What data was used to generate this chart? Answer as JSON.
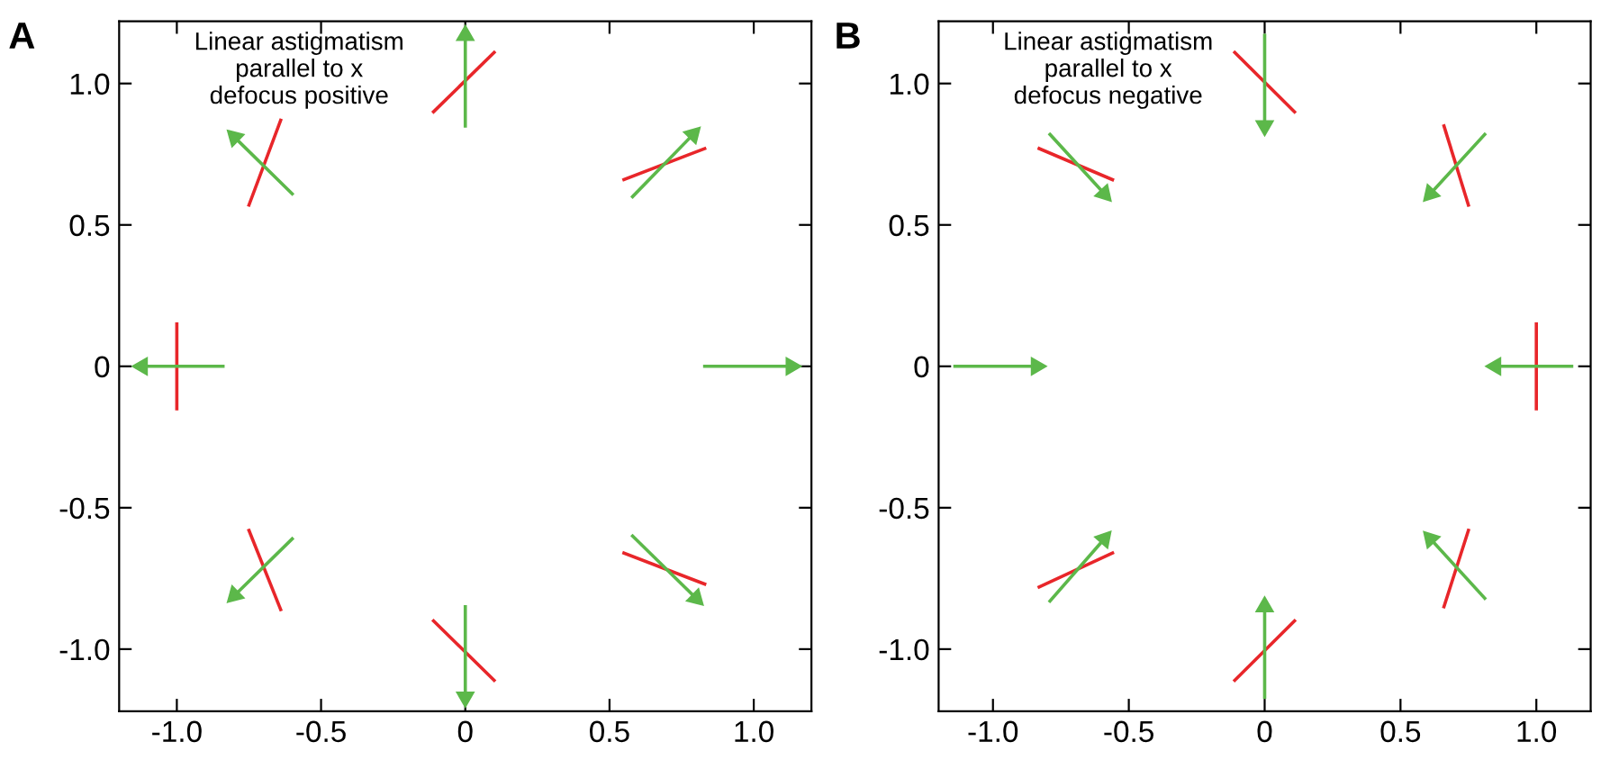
{
  "chart_data": [
    {
      "type": "line",
      "title": "A",
      "annotations": [
        "Linear astigmatism\nparallel to x\ndefocus positive"
      ],
      "xlim": [
        -1.2,
        1.2
      ],
      "ylim": [
        -1.22,
        1.22
      ],
      "xticks": [
        {
          "value": -1.0,
          "label": "-1.0"
        },
        {
          "value": -0.5,
          "label": "-0.5"
        },
        0,
        0.5,
        {
          "value": 1.0,
          "label": "1.0"
        }
      ],
      "yticks": [
        {
          "value": -1.0,
          "label": "-1.0"
        },
        {
          "value": -0.5,
          "label": "-0.5"
        },
        0,
        0.5,
        {
          "value": 1.0,
          "label": "1.0"
        }
      ],
      "grid": false,
      "series": [
        {
          "color": "#e8262a",
          "x": [
            -0.11,
            0.1
          ],
          "values": [
            0.9,
            1.11
          ]
        },
        {
          "color": "#e8262a",
          "x": [
            0.55,
            0.83
          ],
          "values": [
            0.66,
            0.77
          ]
        },
        {
          "color": "#e8262a",
          "x": [
            -0.75,
            -0.64
          ],
          "values": [
            0.57,
            0.87
          ]
        },
        {
          "color": "#e8262a",
          "x": [
            -1.0,
            -1.0
          ],
          "values": [
            0.15,
            -0.15
          ]
        },
        {
          "color": "#e8262a",
          "x": [
            -0.75,
            -0.64
          ],
          "values": [
            -0.58,
            -0.86
          ]
        },
        {
          "color": "#e8262a",
          "x": [
            -0.11,
            0.1
          ],
          "values": [
            -0.9,
            -1.11
          ]
        },
        {
          "color": "#e8262a",
          "x": [
            0.55,
            0.83
          ],
          "values": [
            -0.66,
            -0.77
          ]
        },
        {
          "color": "#5cb84a",
          "marker": "triangle",
          "x": [
            0,
            0
          ],
          "values": [
            0.85,
            1.17
          ]
        },
        {
          "color": "#5cb84a",
          "marker": "triangle",
          "x": [
            0.58,
            0.79
          ],
          "values": [
            0.6,
            0.82
          ]
        },
        {
          "color": "#5cb84a",
          "marker": "triangle",
          "x": [
            -0.6,
            -0.8
          ],
          "values": [
            0.61,
            0.81
          ]
        },
        {
          "color": "#5cb84a",
          "marker": "triangle",
          "x": [
            -0.84,
            -1.12
          ],
          "values": [
            0,
            0
          ]
        },
        {
          "color": "#5cb84a",
          "marker": "triangle",
          "x": [
            0.83,
            1.13
          ],
          "values": [
            0,
            0
          ]
        },
        {
          "color": "#5cb84a",
          "marker": "triangle",
          "x": [
            -0.6,
            -0.8
          ],
          "values": [
            -0.61,
            -0.81
          ]
        },
        {
          "color": "#5cb84a",
          "marker": "triangle",
          "x": [
            0,
            0
          ],
          "values": [
            -0.85,
            -1.17
          ]
        },
        {
          "color": "#5cb84a",
          "marker": "triangle",
          "x": [
            0.58,
            0.8
          ],
          "values": [
            -0.6,
            -0.82
          ]
        }
      ]
    },
    {
      "type": "line",
      "title": "B",
      "annotations": [
        "Linear astigmatism\nparallel to x\ndefocus negative"
      ],
      "xlim": [
        -1.2,
        1.2
      ],
      "ylim": [
        -1.22,
        1.22
      ],
      "xticks": [
        {
          "value": -1.0,
          "label": "-1.0"
        },
        {
          "value": -0.5,
          "label": "-0.5"
        },
        0,
        0.5,
        {
          "value": 1.0,
          "label": "1.0"
        }
      ],
      "yticks": [
        {
          "value": -1.0,
          "label": "-1.0"
        },
        {
          "value": -0.5,
          "label": "-0.5"
        },
        0,
        0.5,
        {
          "value": 1.0,
          "label": "1.0"
        }
      ],
      "grid": false,
      "series": [
        {
          "color": "#e8262a",
          "x": [
            -0.11,
            0.11
          ],
          "values": [
            1.11,
            0.9
          ]
        },
        {
          "color": "#e8262a",
          "x": [
            -0.83,
            -0.56
          ],
          "values": [
            0.77,
            0.66
          ]
        },
        {
          "color": "#e8262a",
          "x": [
            -0.83,
            -0.56
          ],
          "values": [
            -0.78,
            -0.66
          ]
        },
        {
          "color": "#e8262a",
          "x": [
            -0.11,
            0.11
          ],
          "values": [
            -1.11,
            -0.9
          ]
        },
        {
          "color": "#e8262a",
          "x": [
            0.66,
            0.75
          ],
          "values": [
            -0.85,
            -0.58
          ]
        },
        {
          "color": "#e8262a",
          "x": [
            1.0,
            1.0
          ],
          "values": [
            0.15,
            -0.15
          ]
        },
        {
          "color": "#e8262a",
          "x": [
            0.66,
            0.75
          ],
          "values": [
            0.85,
            0.57
          ]
        },
        {
          "color": "#5cb84a",
          "marker": "triangle",
          "x": [
            0,
            0
          ],
          "values": [
            1.17,
            0.85
          ]
        },
        {
          "color": "#5cb84a",
          "marker": "triangle",
          "x": [
            -0.79,
            -0.59
          ],
          "values": [
            0.82,
            0.61
          ]
        },
        {
          "color": "#5cb84a",
          "marker": "triangle",
          "x": [
            -1.14,
            -0.84
          ],
          "values": [
            0,
            0
          ]
        },
        {
          "color": "#5cb84a",
          "marker": "triangle",
          "x": [
            -0.79,
            -0.59
          ],
          "values": [
            -0.83,
            -0.61
          ]
        },
        {
          "color": "#5cb84a",
          "marker": "triangle",
          "x": [
            0,
            0
          ],
          "values": [
            -1.17,
            -0.85
          ]
        },
        {
          "color": "#5cb84a",
          "marker": "triangle",
          "x": [
            0.81,
            0.61
          ],
          "values": [
            -0.82,
            -0.61
          ]
        },
        {
          "color": "#5cb84a",
          "marker": "triangle",
          "x": [
            1.13,
            0.85
          ],
          "values": [
            0,
            0
          ]
        },
        {
          "color": "#5cb84a",
          "marker": "triangle",
          "x": [
            0.81,
            0.61
          ],
          "values": [
            0.82,
            0.61
          ]
        }
      ]
    }
  ]
}
